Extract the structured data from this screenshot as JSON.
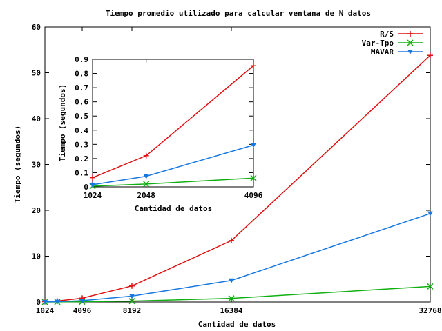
{
  "chart_data": [
    {
      "type": "line",
      "title": "Tiempo promedio utilizado para calcular ventana de N datos",
      "xlabel": "Cantidad de datos",
      "ylabel": "Tiempo (segundos)",
      "xlim": [
        1024,
        32768
      ],
      "ylim": [
        0,
        60
      ],
      "x_ticks": [
        1024,
        4096,
        8192,
        16384,
        32768
      ],
      "y_ticks": [
        0,
        10,
        20,
        30,
        40,
        50,
        60
      ],
      "legend_position": "top-right",
      "grid": false,
      "series": [
        {
          "name": "R/S",
          "color": "#e01010",
          "marker": "plus",
          "x": [
            1024,
            2048,
            4096,
            8192,
            16384,
            32768
          ],
          "y": [
            0.07,
            0.22,
            0.85,
            3.5,
            13.4,
            53.8
          ]
        },
        {
          "name": "Var-Tpo",
          "color": "#10b010",
          "marker": "cross",
          "x": [
            1024,
            2048,
            4096,
            8192,
            16384,
            32768
          ],
          "y": [
            0.0,
            0.02,
            0.07,
            0.2,
            0.8,
            3.4
          ]
        },
        {
          "name": "MAVAR",
          "color": "#1878e0",
          "marker": "triangle-down",
          "x": [
            1024,
            2048,
            4096,
            8192,
            16384,
            32768
          ],
          "y": [
            0.02,
            0.08,
            0.3,
            1.3,
            4.7,
            19.3
          ]
        }
      ]
    },
    {
      "type": "line",
      "title": "",
      "xlabel": "Cantidad de datos",
      "ylabel": "Tiempo (segundos)",
      "xlim": [
        1024,
        4096
      ],
      "ylim": [
        0,
        0.9
      ],
      "x_ticks": [
        1024,
        2048,
        4096
      ],
      "y_ticks": [
        0,
        0.1,
        0.2,
        0.3,
        0.4,
        0.5,
        0.6,
        0.7,
        0.8,
        0.9
      ],
      "series": [
        {
          "name": "R/S",
          "color": "#e01010",
          "marker": "plus",
          "x": [
            1024,
            2048,
            4096
          ],
          "y": [
            0.065,
            0.22,
            0.855
          ]
        },
        {
          "name": "Var-Tpo",
          "color": "#10b010",
          "marker": "cross",
          "x": [
            1024,
            2048,
            4096
          ],
          "y": [
            0.005,
            0.02,
            0.062
          ]
        },
        {
          "name": "MAVAR",
          "color": "#1878e0",
          "marker": "triangle-down",
          "x": [
            1024,
            2048,
            4096
          ],
          "y": [
            0.015,
            0.075,
            0.295
          ]
        }
      ]
    }
  ]
}
